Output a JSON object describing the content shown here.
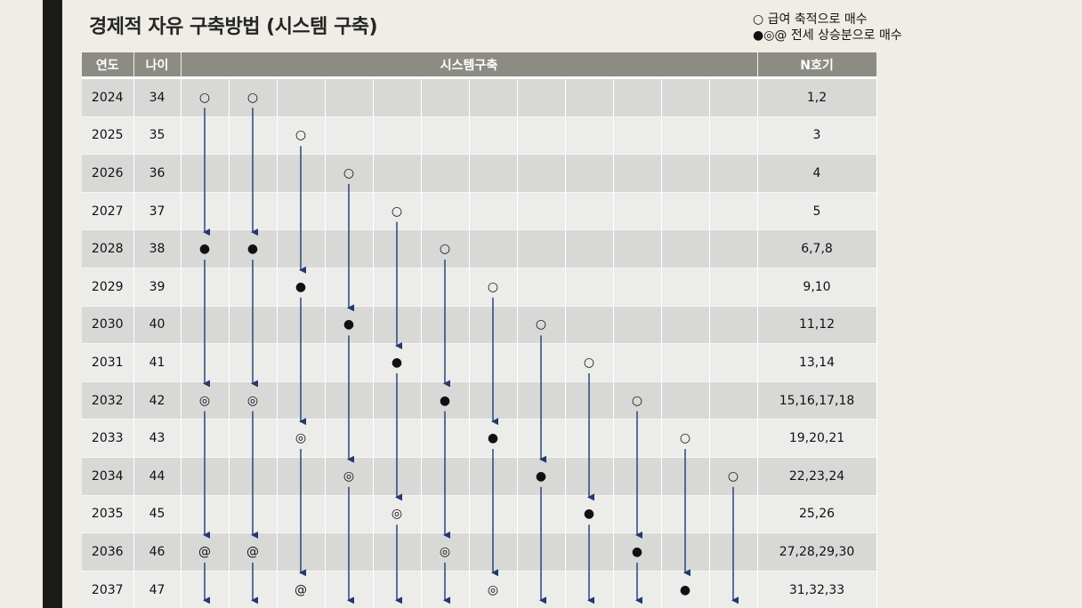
{
  "title": "경제적 자유 구축방법 (시스템 구축)",
  "legend": {
    "line1": "○ 급여 축적으로 매수",
    "line2": "●◎@ 전세 상승분으로 매수"
  },
  "headers": {
    "year": "연도",
    "age": "나이",
    "system": "시스템구축",
    "n": "N호기"
  },
  "symbols": {
    "salary": "○",
    "jeonse1": "●",
    "jeonse2": "◎",
    "jeonse3": "@"
  },
  "rows": [
    {
      "year": "2024",
      "age": "34",
      "cells": [
        "○",
        "○",
        "",
        "",
        "",
        "",
        "",
        "",
        "",
        "",
        "",
        ""
      ],
      "n": "1,2"
    },
    {
      "year": "2025",
      "age": "35",
      "cells": [
        "",
        "",
        "○",
        "",
        "",
        "",
        "",
        "",
        "",
        "",
        "",
        ""
      ],
      "n": "3"
    },
    {
      "year": "2026",
      "age": "36",
      "cells": [
        "",
        "",
        "",
        "○",
        "",
        "",
        "",
        "",
        "",
        "",
        "",
        ""
      ],
      "n": "4"
    },
    {
      "year": "2027",
      "age": "37",
      "cells": [
        "",
        "",
        "",
        "",
        "○",
        "",
        "",
        "",
        "",
        "",
        "",
        ""
      ],
      "n": "5"
    },
    {
      "year": "2028",
      "age": "38",
      "cells": [
        "●",
        "●",
        "",
        "",
        "",
        "○",
        "",
        "",
        "",
        "",
        "",
        ""
      ],
      "n": "6,7,8"
    },
    {
      "year": "2029",
      "age": "39",
      "cells": [
        "",
        "",
        "●",
        "",
        "",
        "",
        "○",
        "",
        "",
        "",
        "",
        ""
      ],
      "n": "9,10"
    },
    {
      "year": "2030",
      "age": "40",
      "cells": [
        "",
        "",
        "",
        "●",
        "",
        "",
        "",
        "○",
        "",
        "",
        "",
        ""
      ],
      "n": "11,12"
    },
    {
      "year": "2031",
      "age": "41",
      "cells": [
        "",
        "",
        "",
        "",
        "●",
        "",
        "",
        "",
        "○",
        "",
        "",
        ""
      ],
      "n": "13,14"
    },
    {
      "year": "2032",
      "age": "42",
      "cells": [
        "◎",
        "◎",
        "",
        "",
        "",
        "●",
        "",
        "",
        "",
        "○",
        "",
        ""
      ],
      "n": "15,16,17,18"
    },
    {
      "year": "2033",
      "age": "43",
      "cells": [
        "",
        "",
        "◎",
        "",
        "",
        "",
        "●",
        "",
        "",
        "",
        "○",
        ""
      ],
      "n": "19,20,21"
    },
    {
      "year": "2034",
      "age": "44",
      "cells": [
        "",
        "",
        "",
        "◎",
        "",
        "",
        "",
        "●",
        "",
        "",
        "",
        "○"
      ],
      "n": "22,23,24"
    },
    {
      "year": "2035",
      "age": "45",
      "cells": [
        "",
        "",
        "",
        "",
        "◎",
        "",
        "",
        "",
        "●",
        "",
        "",
        ""
      ],
      "n": "25,26"
    },
    {
      "year": "2036",
      "age": "46",
      "cells": [
        "@",
        "@",
        "",
        "",
        "",
        "◎",
        "",
        "",
        "",
        "●",
        "",
        ""
      ],
      "n": "27,28,29,30"
    },
    {
      "year": "2037",
      "age": "47",
      "cells": [
        "",
        "",
        "@",
        "",
        "",
        "",
        "◎",
        "",
        "",
        "",
        "●",
        ""
      ],
      "n": "31,32,33"
    }
  ],
  "arrow_color": "#1f3a6e"
}
